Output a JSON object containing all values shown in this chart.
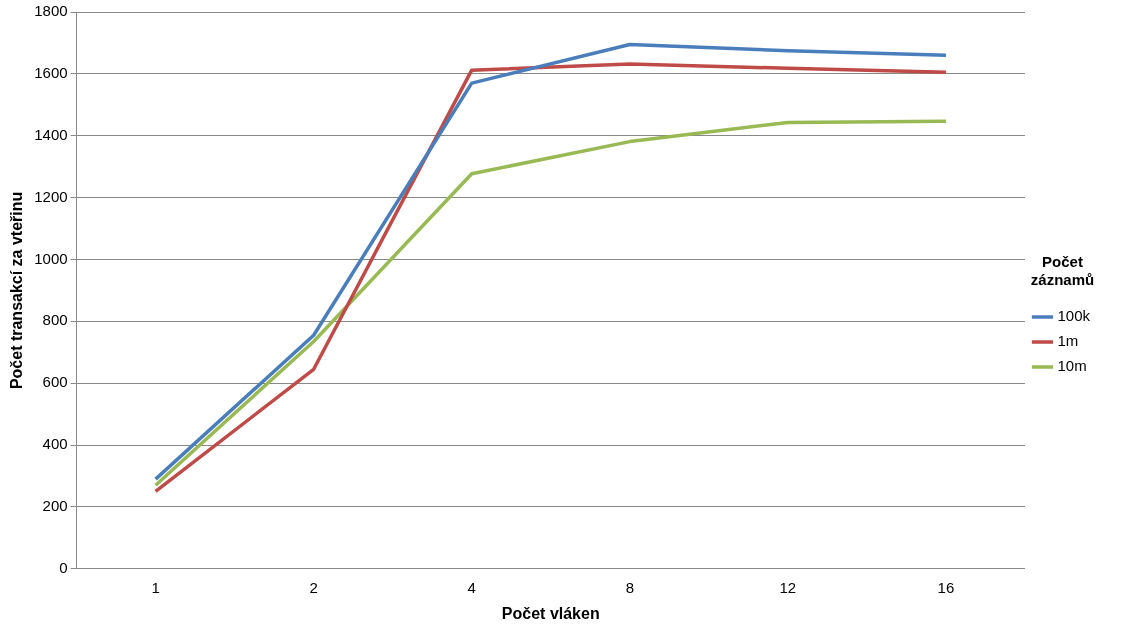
{
  "chart_data": {
    "type": "line",
    "xlabel": "Počet vláken",
    "ylabel": "Počet transakcí za vteřinu",
    "legend_title": "Počet záznamů",
    "categories": [
      "1",
      "2",
      "4",
      "8",
      "12",
      "16"
    ],
    "series": [
      {
        "name": "100k",
        "color": "#4a7ebb",
        "values": [
          290,
          755,
          1570,
          1695,
          1675,
          1660
        ]
      },
      {
        "name": "1m",
        "color": "#be4b48",
        "values": [
          250,
          645,
          1612,
          1632,
          1618,
          1605
        ]
      },
      {
        "name": "10m",
        "color": "#98b954",
        "values": [
          270,
          735,
          1277,
          1381,
          1443,
          1447
        ]
      }
    ],
    "ylim": [
      0,
      1800
    ],
    "yticks": [
      0,
      200,
      400,
      600,
      800,
      1000,
      1200,
      1400,
      1600,
      1800
    ],
    "grid": "y",
    "legend": "right",
    "marker": "none",
    "line_style": "solid"
  }
}
